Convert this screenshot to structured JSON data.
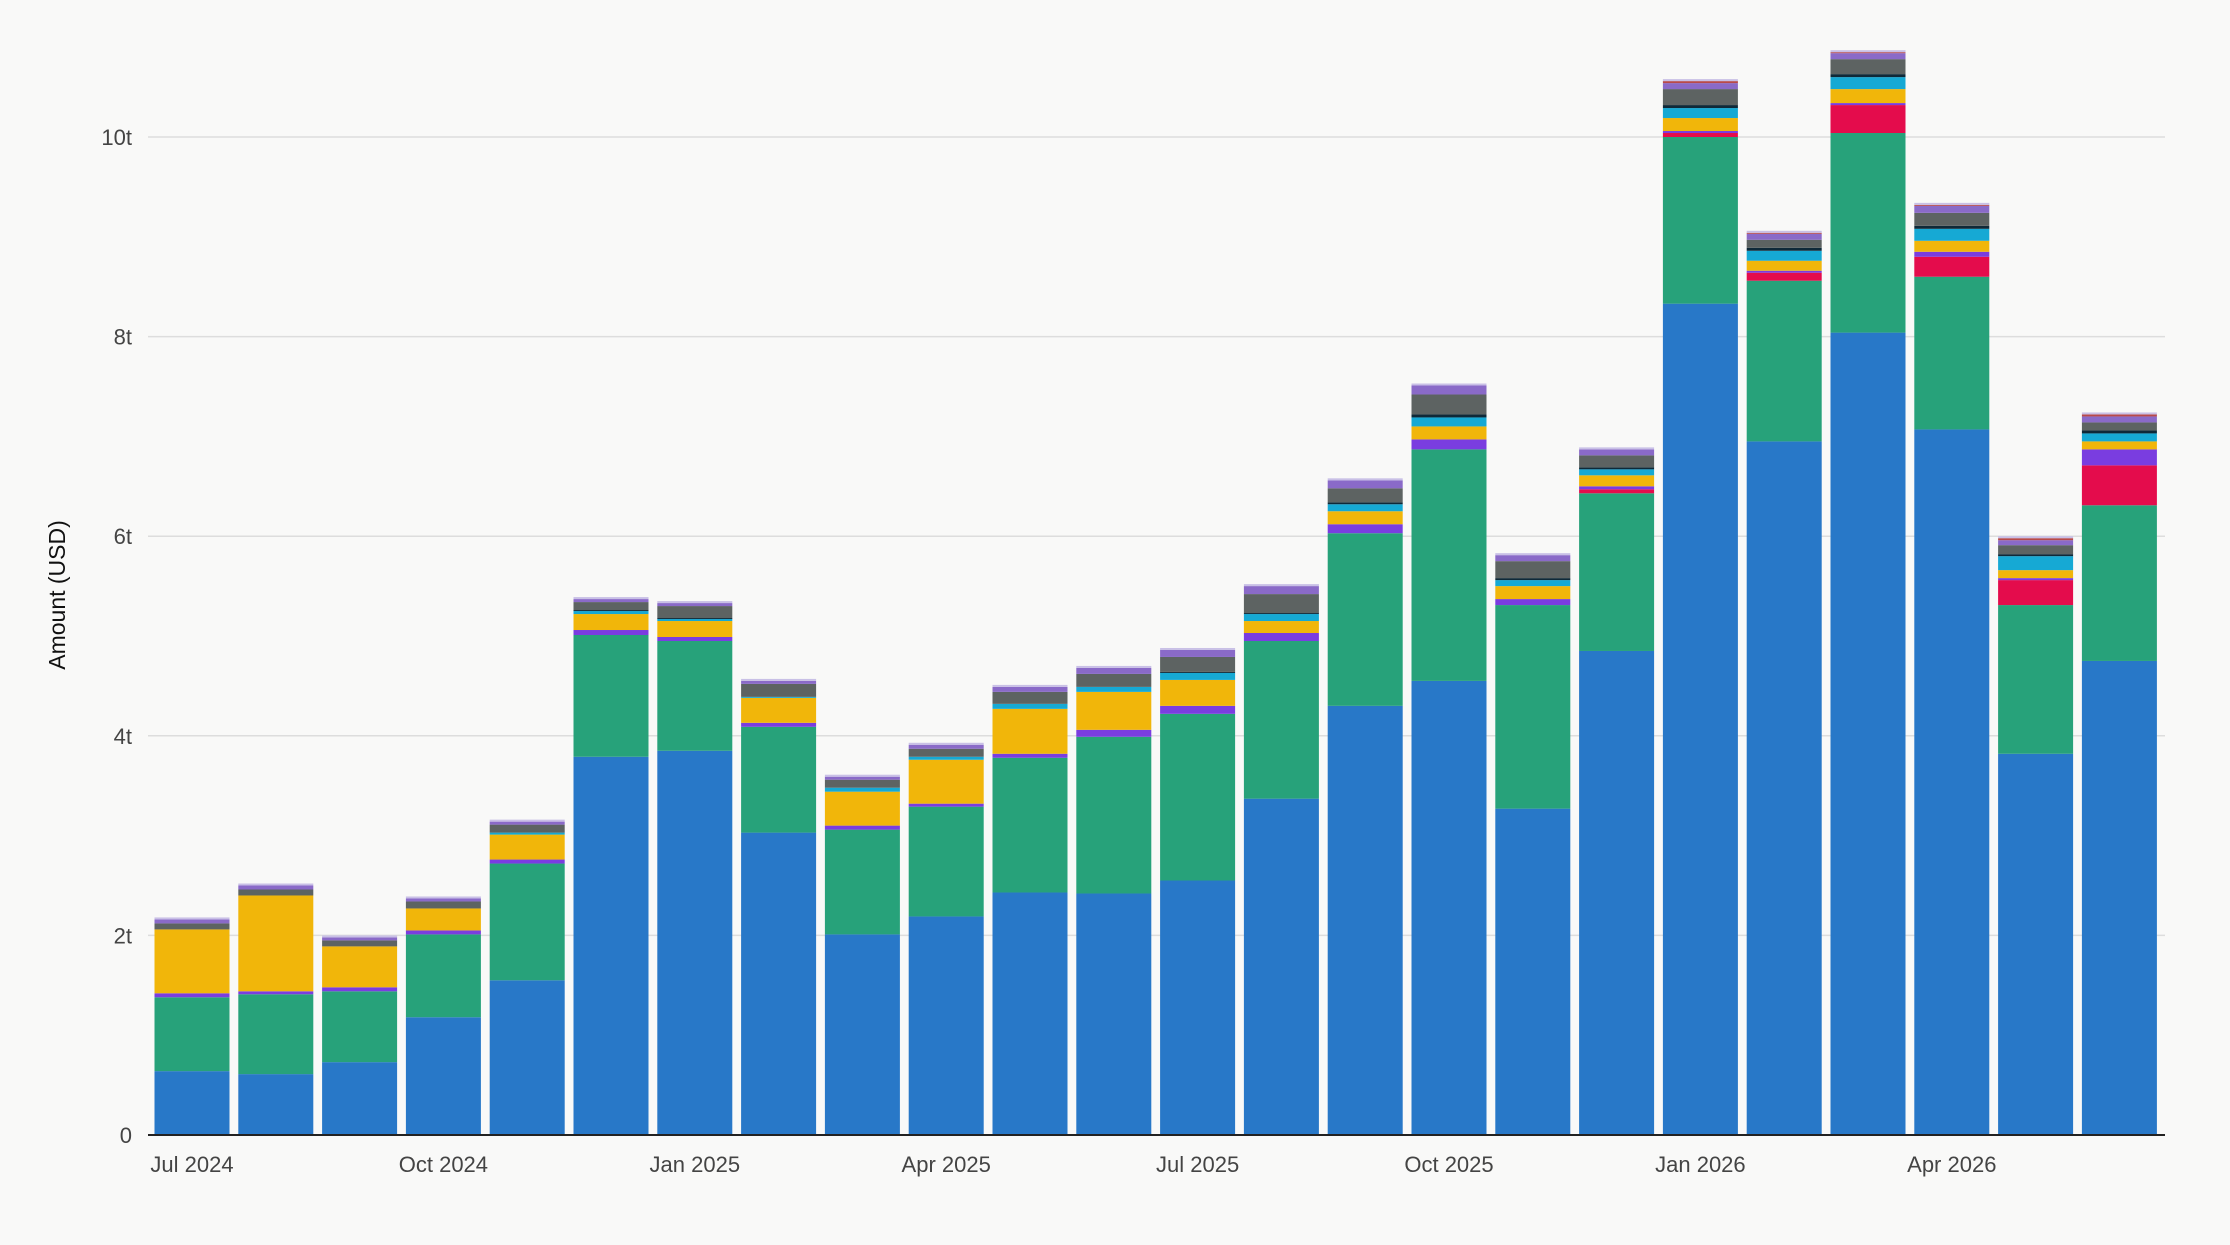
{
  "chart_data": {
    "type": "bar",
    "stacked": true,
    "ylabel": "Amount (USD)",
    "xlabel": "",
    "title": "",
    "ylim": [
      0,
      10
    ],
    "yticks": [
      0,
      2,
      4,
      6,
      8,
      10
    ],
    "ytick_labels": [
      "0",
      "2t",
      "4t",
      "6t",
      "8t",
      "10t"
    ],
    "grid": "horizontal",
    "legend": "none",
    "categories": [
      "Jul 2024",
      "Aug 2024",
      "Sep 2024",
      "Oct 2024",
      "Nov 2024",
      "Dec 2024",
      "Jan 2025",
      "Feb 2025",
      "Mar 2025",
      "Apr 2025",
      "May 2025",
      "Jun 2025",
      "Jul 2025",
      "Aug 2025",
      "Sep 2025",
      "Oct 2025",
      "Nov 2025",
      "Dec 2025",
      "Jan 2026",
      "Feb 2026",
      "Mar 2026",
      "Apr 2026",
      "May 2026",
      "Jun 2026"
    ],
    "x_tick_labels": [
      {
        "category": "Jul 2024",
        "label": "Jul 2024"
      },
      {
        "category": "Oct 2024",
        "label": "Oct 2024"
      },
      {
        "category": "Jan 2025",
        "label": "Jan 2025"
      },
      {
        "category": "Apr 2025",
        "label": "Apr 2025"
      },
      {
        "category": "Jul 2025",
        "label": "Jul 2025"
      },
      {
        "category": "Oct 2025",
        "label": "Oct 2025"
      },
      {
        "category": "Jan 2026",
        "label": "Jan 2026"
      },
      {
        "category": "Apr 2026",
        "label": "Apr 2026"
      }
    ],
    "series": [
      {
        "color": "#2878c8",
        "values": [
          0.64,
          0.61,
          0.73,
          1.18,
          1.55,
          3.79,
          3.85,
          3.03,
          2.01,
          2.19,
          2.43,
          2.42,
          2.55,
          3.37,
          4.3,
          4.55,
          3.27,
          4.85,
          8.33,
          6.95,
          8.04,
          7.07,
          3.82,
          4.75
        ]
      },
      {
        "color": "#27a27a",
        "values": [
          0.74,
          0.8,
          0.71,
          0.83,
          1.17,
          1.22,
          1.1,
          1.06,
          1.05,
          1.1,
          1.35,
          1.57,
          1.67,
          1.58,
          1.73,
          2.32,
          2.04,
          1.58,
          1.67,
          1.61,
          2.0,
          1.53,
          1.49,
          1.56
        ]
      },
      {
        "color": "#e40c4c",
        "values": [
          0,
          0,
          0,
          0,
          0,
          0,
          0,
          0,
          0,
          0,
          0,
          0,
          0,
          0,
          0,
          0,
          0,
          0.04,
          0.04,
          0.08,
          0.28,
          0.2,
          0.25,
          0.4
        ]
      },
      {
        "color": "#7a3de0",
        "values": [
          0.04,
          0.03,
          0.04,
          0.04,
          0.04,
          0.05,
          0.04,
          0.04,
          0.04,
          0.03,
          0.04,
          0.07,
          0.08,
          0.08,
          0.09,
          0.1,
          0.06,
          0.03,
          0.02,
          0.02,
          0.02,
          0.05,
          0.02,
          0.16
        ]
      },
      {
        "color": "#f1b60a",
        "values": [
          0.64,
          0.96,
          0.41,
          0.22,
          0.25,
          0.16,
          0.16,
          0.25,
          0.34,
          0.44,
          0.45,
          0.38,
          0.26,
          0.12,
          0.13,
          0.13,
          0.13,
          0.11,
          0.13,
          0.1,
          0.14,
          0.11,
          0.08,
          0.08
        ]
      },
      {
        "color": "#16a9d4",
        "values": [
          0,
          0,
          0,
          0,
          0.02,
          0.03,
          0.02,
          0.01,
          0.04,
          0.03,
          0.05,
          0.05,
          0.07,
          0.07,
          0.07,
          0.09,
          0.06,
          0.06,
          0.1,
          0.1,
          0.12,
          0.12,
          0.14,
          0.08
        ]
      },
      {
        "color": "#0f2938",
        "values": [
          0,
          0,
          0,
          0,
          0,
          0.01,
          0.01,
          0,
          0,
          0,
          0,
          0,
          0.01,
          0.01,
          0.02,
          0.03,
          0.02,
          0.02,
          0.03,
          0.03,
          0.03,
          0.03,
          0.02,
          0.03
        ]
      },
      {
        "color": "#5d6362",
        "values": [
          0.06,
          0.06,
          0.06,
          0.07,
          0.08,
          0.08,
          0.12,
          0.13,
          0.08,
          0.08,
          0.12,
          0.13,
          0.15,
          0.19,
          0.14,
          0.2,
          0.17,
          0.12,
          0.16,
          0.08,
          0.15,
          0.13,
          0.09,
          0.08
        ]
      },
      {
        "color": "#8a6ac8",
        "values": [
          0.04,
          0.04,
          0.03,
          0.03,
          0.03,
          0.03,
          0.03,
          0.03,
          0.03,
          0.04,
          0.05,
          0.06,
          0.07,
          0.08,
          0.08,
          0.09,
          0.06,
          0.06,
          0.06,
          0.06,
          0.06,
          0.07,
          0.05,
          0.06
        ]
      },
      {
        "color": "#b84a4a",
        "values": [
          0,
          0,
          0,
          0,
          0,
          0,
          0,
          0,
          0,
          0,
          0,
          0,
          0,
          0,
          0,
          0,
          0,
          0,
          0.02,
          0.01,
          0.01,
          0.01,
          0.02,
          0.02
        ]
      }
    ]
  }
}
